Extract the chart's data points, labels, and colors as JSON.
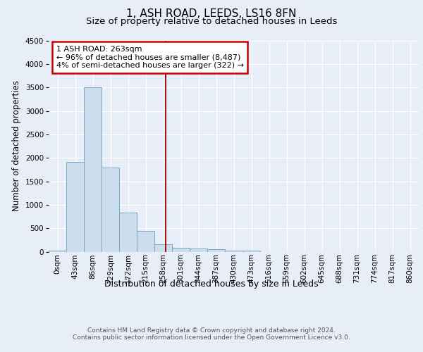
{
  "title": "1, ASH ROAD, LEEDS, LS16 8FN",
  "subtitle": "Size of property relative to detached houses in Leeds",
  "xlabel": "Distribution of detached houses by size in Leeds",
  "ylabel": "Number of detached properties",
  "bar_labels": [
    "0sqm",
    "43sqm",
    "86sqm",
    "129sqm",
    "172sqm",
    "215sqm",
    "258sqm",
    "301sqm",
    "344sqm",
    "387sqm",
    "430sqm",
    "473sqm",
    "516sqm",
    "559sqm",
    "602sqm",
    "645sqm",
    "688sqm",
    "731sqm",
    "774sqm",
    "817sqm",
    "860sqm"
  ],
  "bar_values": [
    30,
    1920,
    3500,
    1790,
    840,
    450,
    155,
    90,
    75,
    50,
    30,
    30,
    0,
    0,
    0,
    0,
    0,
    0,
    0,
    0,
    0
  ],
  "bar_color": "#ccdded",
  "bar_edge_color": "#7aaabf",
  "vline_x": 6.14,
  "vline_color": "#990000",
  "ylim": [
    0,
    4500
  ],
  "annotation_text": "1 ASH ROAD: 263sqm\n← 96% of detached houses are smaller (8,487)\n4% of semi-detached houses are larger (322) →",
  "annotation_box_color": "#ffffff",
  "annotation_box_edge_color": "#cc0000",
  "footer_text": "Contains HM Land Registry data © Crown copyright and database right 2024.\nContains public sector information licensed under the Open Government Licence v3.0.",
  "background_color": "#e8eef8",
  "grid_color": "#ffffff",
  "title_fontsize": 11,
  "subtitle_fontsize": 9.5,
  "xlabel_fontsize": 9,
  "ylabel_fontsize": 8.5,
  "tick_fontsize": 7.5,
  "annotation_fontsize": 8,
  "footer_fontsize": 6.5
}
